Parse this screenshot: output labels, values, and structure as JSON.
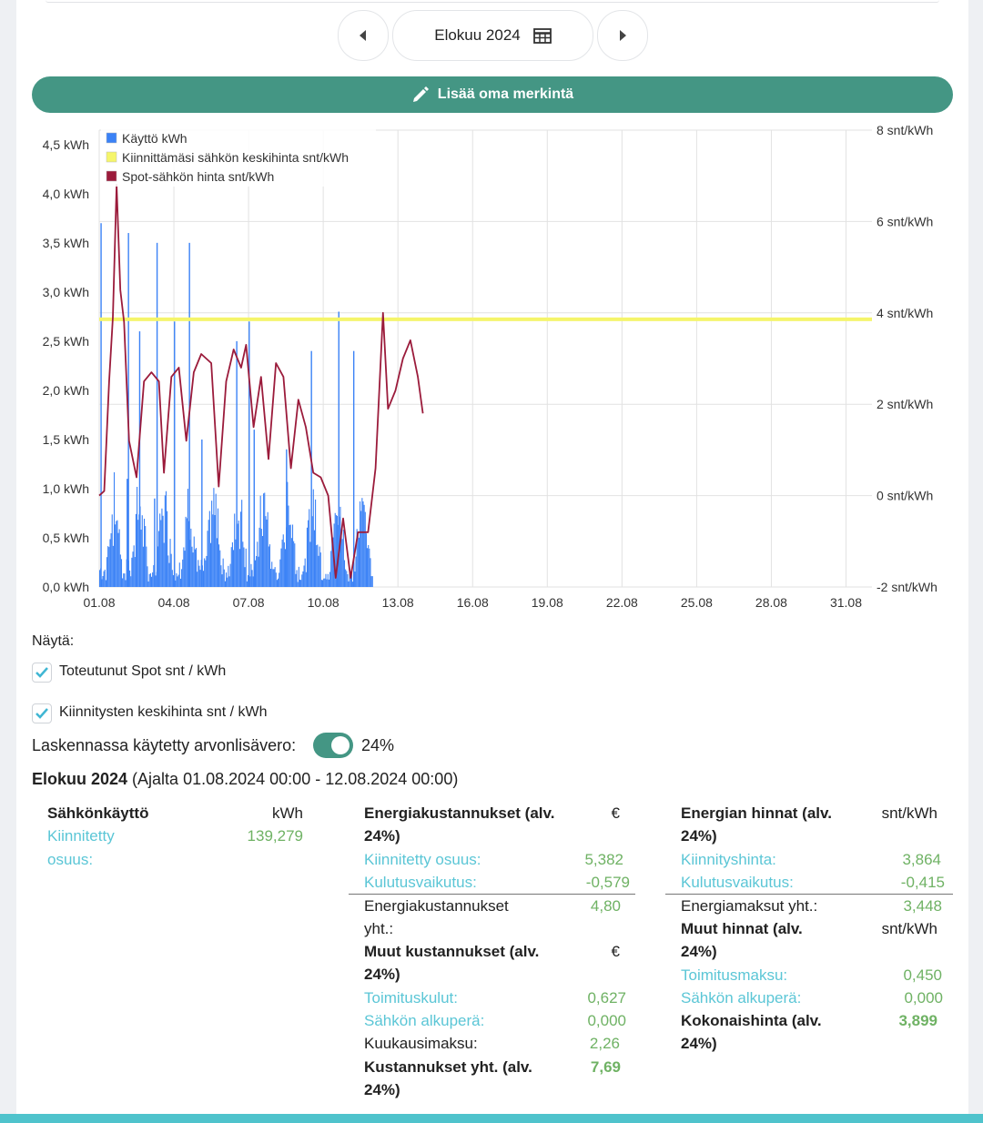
{
  "nav": {
    "prev_icon": "caret-left-icon",
    "next_icon": "caret-right-icon",
    "month_label": "Elokuu 2024",
    "calendar_icon": "calendar-table-icon"
  },
  "add_button": {
    "label": "Lisää oma merkintä",
    "icon": "pencil-icon"
  },
  "chart_data": {
    "type": "bar+line",
    "legend": [
      {
        "name": "Käyttö kWh",
        "color": "#3b82f6"
      },
      {
        "name": "Kiinnittämäsi sähkön keskihinta snt/kWh",
        "color": "#f5f56a"
      },
      {
        "name": "Spot-sähkön hinta snt/kWh",
        "color": "#9b1b3b"
      }
    ],
    "x_ticks": [
      "01.08",
      "04.08",
      "07.08",
      "10.08",
      "13.08",
      "16.08",
      "19.08",
      "22.08",
      "25.08",
      "28.08",
      "31.08"
    ],
    "y_left_ticks": [
      "0,0 kWh",
      "0,5 kWh",
      "1,0 kWh",
      "1,5 kWh",
      "2,0 kWh",
      "2,5 kWh",
      "3,0 kWh",
      "3,5 kWh",
      "4,0 kWh",
      "4,5 kWh"
    ],
    "y_left_range": [
      0,
      4.6
    ],
    "y_right_ticks": [
      "-2 snt/kWh",
      "0 snt/kWh",
      "2 snt/kWh",
      "4 snt/kWh",
      "6 snt/kWh",
      "8 snt/kWh"
    ],
    "y_right_range": [
      -2,
      8
    ],
    "x_range_days": [
      1,
      31.9
    ],
    "fixed_price": 3.86,
    "usage_peaks": [
      {
        "day": 1.05,
        "v": 3.7
      },
      {
        "day": 2.1,
        "v": 1.1
      },
      {
        "day": 2.15,
        "v": 3.6
      },
      {
        "day": 2.6,
        "v": 2.6
      },
      {
        "day": 3.2,
        "v": 0.9
      },
      {
        "day": 3.3,
        "v": 3.5
      },
      {
        "day": 4.0,
        "v": 2.7
      },
      {
        "day": 4.6,
        "v": 3.5
      },
      {
        "day": 5.1,
        "v": 1.5
      },
      {
        "day": 6.5,
        "v": 2.5
      },
      {
        "day": 7.0,
        "v": 2.7
      },
      {
        "day": 7.2,
        "v": 1.6
      },
      {
        "day": 8.5,
        "v": 1.4
      },
      {
        "day": 9.5,
        "v": 2.4
      },
      {
        "day": 10.6,
        "v": 2.8
      },
      {
        "day": 11.2,
        "v": 2.4
      }
    ],
    "spot_price": [
      {
        "day": 1.0,
        "p": 0.0
      },
      {
        "day": 1.2,
        "p": 0.1
      },
      {
        "day": 1.4,
        "p": 2.5
      },
      {
        "day": 1.55,
        "p": 3.9
      },
      {
        "day": 1.7,
        "p": 6.8
      },
      {
        "day": 1.85,
        "p": 4.5
      },
      {
        "day": 2.0,
        "p": 3.8
      },
      {
        "day": 2.2,
        "p": 1.2
      },
      {
        "day": 2.5,
        "p": 0.4
      },
      {
        "day": 2.8,
        "p": 2.5
      },
      {
        "day": 3.1,
        "p": 2.7
      },
      {
        "day": 3.4,
        "p": 2.5
      },
      {
        "day": 3.6,
        "p": 0.5
      },
      {
        "day": 3.9,
        "p": 2.6
      },
      {
        "day": 4.2,
        "p": 2.8
      },
      {
        "day": 4.5,
        "p": 1.2
      },
      {
        "day": 4.8,
        "p": 2.7
      },
      {
        "day": 5.1,
        "p": 3.1
      },
      {
        "day": 5.5,
        "p": 2.9
      },
      {
        "day": 5.8,
        "p": 0.2
      },
      {
        "day": 6.1,
        "p": 2.5
      },
      {
        "day": 6.4,
        "p": 3.2
      },
      {
        "day": 6.7,
        "p": 2.8
      },
      {
        "day": 6.9,
        "p": 3.3
      },
      {
        "day": 7.2,
        "p": 1.5
      },
      {
        "day": 7.5,
        "p": 2.6
      },
      {
        "day": 7.8,
        "p": 0.8
      },
      {
        "day": 8.1,
        "p": 2.9
      },
      {
        "day": 8.4,
        "p": 2.6
      },
      {
        "day": 8.7,
        "p": 0.6
      },
      {
        "day": 9.0,
        "p": 2.1
      },
      {
        "day": 9.3,
        "p": 1.5
      },
      {
        "day": 9.6,
        "p": 0.5
      },
      {
        "day": 9.9,
        "p": 0.4
      },
      {
        "day": 10.2,
        "p": 0.0
      },
      {
        "day": 10.5,
        "p": -1.8
      },
      {
        "day": 10.8,
        "p": -0.5
      },
      {
        "day": 11.1,
        "p": -1.8
      },
      {
        "day": 11.4,
        "p": -0.8
      },
      {
        "day": 11.8,
        "p": -0.8
      },
      {
        "day": 12.1,
        "p": 0.6
      },
      {
        "day": 12.4,
        "p": 4.0
      },
      {
        "day": 12.6,
        "p": 1.9
      },
      {
        "day": 12.9,
        "p": 2.3
      },
      {
        "day": 13.2,
        "p": 3.0
      },
      {
        "day": 13.5,
        "p": 3.4
      },
      {
        "day": 13.8,
        "p": 2.6
      },
      {
        "day": 14.0,
        "p": 1.8
      }
    ]
  },
  "show": {
    "label": "Näytä:",
    "spot_label": "Toteutunut Spot snt / kWh",
    "fix_label": "Kiinnitysten keskihinta snt / kWh",
    "vat_label": "Laskennassa käytetty arvonlisävero:",
    "vat_value": "24%"
  },
  "summary": {
    "month": "Elokuu 2024",
    "range": " (Ajalta 01.08.2024 00:00 - 12.08.2024 00:00)"
  },
  "col1": {
    "title": "Sähkönkäyttö",
    "unit": "kWh",
    "row1_label_a": "Kiinnitetty",
    "row1_label_b": "osuus:",
    "row1_value": "139,279"
  },
  "col2": {
    "title_a": "Energiakustannukset (alv.",
    "title_b": "24%)",
    "unit": "€",
    "r1_label": "Kiinnitetty osuus:",
    "r1_value": "5,382",
    "r2_label": "Kulutusvaikutus:",
    "r2_value": "-0,579",
    "r3_label_a": "Energiakustannukset",
    "r3_label_b": "yht.:",
    "r3_value": "4,80",
    "other_a": "Muut kustannukset (alv.",
    "other_b": "24%)",
    "other_unit": "€",
    "r4_label": "Toimituskulut:",
    "r4_value": "0,627",
    "r5_label": "Sähkön alkuperä:",
    "r5_value": "0,000",
    "r6_label": "Kuukausimaksu:",
    "r6_value": "2,26",
    "total_a": "Kustannukset yht. (alv.",
    "total_b": "24%)",
    "total_value": "7,69"
  },
  "col3": {
    "title_a": "Energian hinnat (alv.",
    "title_b": "24%)",
    "unit": "snt/kWh",
    "r1_label": "Kiinnityshinta:",
    "r1_value": "3,864",
    "r2_label": "Kulutusvaikutus:",
    "r2_value": "-0,415",
    "r3_label": "Energiamaksut yht.:",
    "r3_value": "3,448",
    "other_a": "Muut hinnat (alv.",
    "other_b": "24%)",
    "other_unit": "snt/kWh",
    "r4_label": "Toimitusmaksu:",
    "r4_value": "0,450",
    "r5_label": "Sähkön alkuperä:",
    "r5_value": "0,000",
    "total_a": "Kokonaishinta (alv.",
    "total_b": "24%)",
    "total_value": "3,899"
  }
}
